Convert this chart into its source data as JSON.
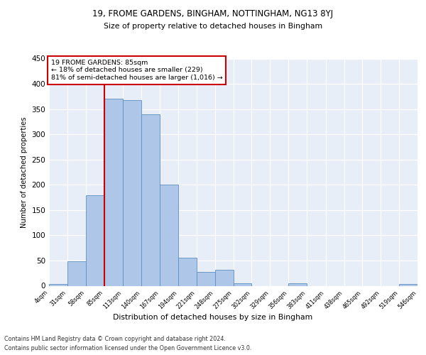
{
  "title1": "19, FROME GARDENS, BINGHAM, NOTTINGHAM, NG13 8YJ",
  "title2": "Size of property relative to detached houses in Bingham",
  "xlabel": "Distribution of detached houses by size in Bingham",
  "ylabel": "Number of detached properties",
  "footnote1": "Contains HM Land Registry data © Crown copyright and database right 2024.",
  "footnote2": "Contains public sector information licensed under the Open Government Licence v3.0.",
  "annotation_line1": "19 FROME GARDENS: 85sqm",
  "annotation_line2": "← 18% of detached houses are smaller (229)",
  "annotation_line3": "81% of semi-detached houses are larger (1,016) →",
  "property_size": 85,
  "bar_edges": [
    4,
    31,
    58,
    85,
    113,
    140,
    167,
    194,
    221,
    248,
    275,
    302,
    329,
    356,
    383,
    411,
    438,
    465,
    492,
    519,
    546
  ],
  "bar_heights": [
    3,
    48,
    180,
    370,
    368,
    340,
    200,
    55,
    28,
    32,
    5,
    0,
    0,
    5,
    0,
    0,
    0,
    0,
    0,
    3
  ],
  "bar_color": "#aec6e8",
  "bar_edge_color": "#5a8fc0",
  "vline_color": "#cc0000",
  "vline_x": 85,
  "annotation_box_color": "#cc0000",
  "ylim": [
    0,
    450
  ],
  "xlim": [
    4,
    546
  ],
  "bg_color": "#e8eef7",
  "grid_color": "#ffffff",
  "yticks": [
    0,
    50,
    100,
    150,
    200,
    250,
    300,
    350,
    400,
    450
  ]
}
